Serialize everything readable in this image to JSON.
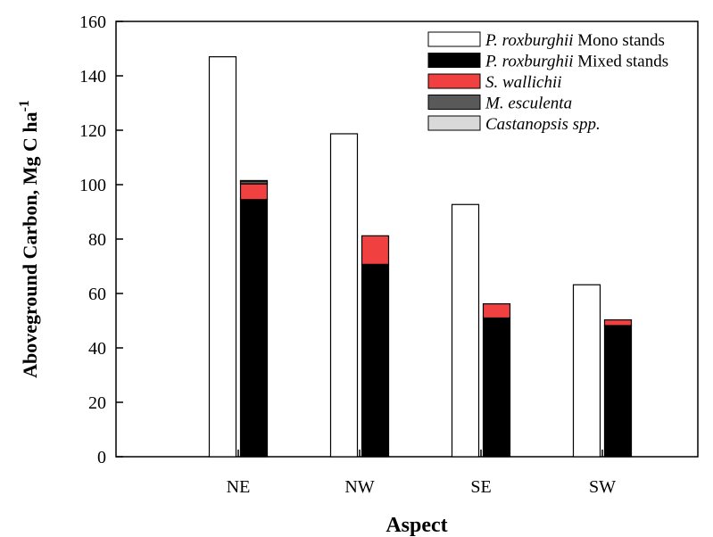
{
  "colors": {
    "mono": "#ffffff",
    "mixed": "#000000",
    "s_wallichii": "#f04040",
    "m_esculenta": "#595959",
    "castanopsis": "#d9d9d9"
  },
  "chart_data": {
    "type": "bar",
    "categories": [
      "NE",
      "NW",
      "SE",
      "SW"
    ],
    "xlabel": "Aspect",
    "ylabel": {
      "main": "Aboveground Carbon, Mg C ha",
      "sup": "-1"
    },
    "ylim": [
      0,
      160
    ],
    "yticks": [
      0,
      20,
      40,
      60,
      80,
      100,
      120,
      140,
      160
    ],
    "grid": false,
    "legend_position": "top-right",
    "series": [
      {
        "name": "P. roxburghii Mono stands",
        "group": "mono",
        "color_key": "mono",
        "values": [
          147,
          118.7,
          92.7,
          63.2
        ]
      },
      {
        "name": "P. roxburghii Mixed stands",
        "group": "mixed",
        "color_key": "mixed",
        "values": [
          94.5,
          70.7,
          51.0,
          48.2
        ]
      },
      {
        "name": "S. wallichii",
        "group": "mixed",
        "color_key": "s_wallichii",
        "values": [
          5.8,
          10.5,
          5.2,
          2.1
        ]
      },
      {
        "name": "M. esculenta",
        "group": "mixed",
        "color_key": "m_esculenta",
        "values": [
          1.0,
          0,
          0,
          0
        ]
      },
      {
        "name": "Castanopsis spp.",
        "group": "mixed",
        "color_key": "castanopsis",
        "values": [
          0.2,
          0,
          0,
          0
        ]
      }
    ],
    "legend": [
      {
        "italic": "P. roxburghii",
        "rest": " Mono stands",
        "color_key": "mono"
      },
      {
        "italic": "P. roxburghii",
        "rest": " Mixed stands",
        "color_key": "mixed"
      },
      {
        "italic": "S. wallichii",
        "rest": "",
        "color_key": "s_wallichii"
      },
      {
        "italic": "M. esculenta",
        "rest": "",
        "color_key": "m_esculenta"
      },
      {
        "italic": "Castanopsis spp.",
        "rest": "",
        "color_key": "castanopsis"
      }
    ]
  }
}
